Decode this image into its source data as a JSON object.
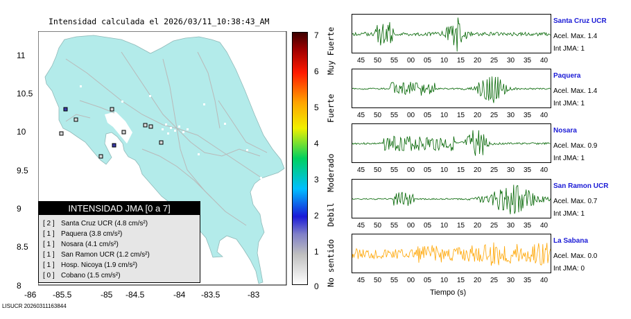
{
  "map": {
    "title": "Intensidad calculada el 2026/03/11_10:38:43_AM",
    "lat_ticks": [
      "11",
      "10.5",
      "10",
      "9.5",
      "9",
      "8.5",
      "8"
    ],
    "lon_ticks": [
      "-86",
      "-85.5",
      "-85",
      "-84.5",
      "-84",
      "-83.5",
      "-83"
    ],
    "land_color": "#b3ebea",
    "road_color": "#b9b9b9"
  },
  "colorbar": {
    "ticks": [
      "7",
      "6",
      "5",
      "4",
      "3",
      "2",
      "1",
      "0"
    ],
    "labels": [
      "Muy Fuerte",
      "Fuerte",
      "Moderado",
      "Debil",
      "No sentido"
    ]
  },
  "legend": {
    "title": "INTENSIDAD JMA [0 a 7]",
    "rows": [
      {
        "idx": "[ 2 ]",
        "text": "Santa Cruz UCR (4.8 cm/s²)"
      },
      {
        "idx": "[ 1 ]",
        "text": "Paquera (3.8 cm/s²)"
      },
      {
        "idx": "[ 1 ]",
        "text": "Nosara (4.1 cm/s²)"
      },
      {
        "idx": "[ 1 ]",
        "text": "San Ramon UCR (1.2 cm/s²)"
      },
      {
        "idx": "[ 1 ]",
        "text": "Hosp. Nicoya (1.9 cm/s²)"
      },
      {
        "idx": "[ 0 ]",
        "text": "Cobano (1.5 cm/s²)"
      }
    ]
  },
  "footer": "LISUCR 20260311163844",
  "waveforms": {
    "time_ticks": [
      "45",
      "50",
      "55",
      "00",
      "05",
      "10",
      "15",
      "20",
      "25",
      "30",
      "35",
      "40"
    ],
    "xlabel": "Tiempo (s)",
    "stations": [
      {
        "name": "Santa Cruz UCR",
        "acel": "Acel. Max. 1.4",
        "jma": "Int JMA: 1",
        "color": "#006400"
      },
      {
        "name": "Paquera",
        "acel": "Acel. Max. 1.4",
        "jma": "Int JMA: 1",
        "color": "#006400"
      },
      {
        "name": "Nosara",
        "acel": "Acel. Max. 0.9",
        "jma": "Int JMA: 1",
        "color": "#006400"
      },
      {
        "name": "San Ramon UCR",
        "acel": "Acel. Max. 0.7",
        "jma": "Int JMA: 1",
        "color": "#006400"
      },
      {
        "name": "La Sabana",
        "acel": "Acel. Max. 0.0",
        "jma": "Int JMA: 0",
        "color": "#ffa500"
      }
    ]
  }
}
